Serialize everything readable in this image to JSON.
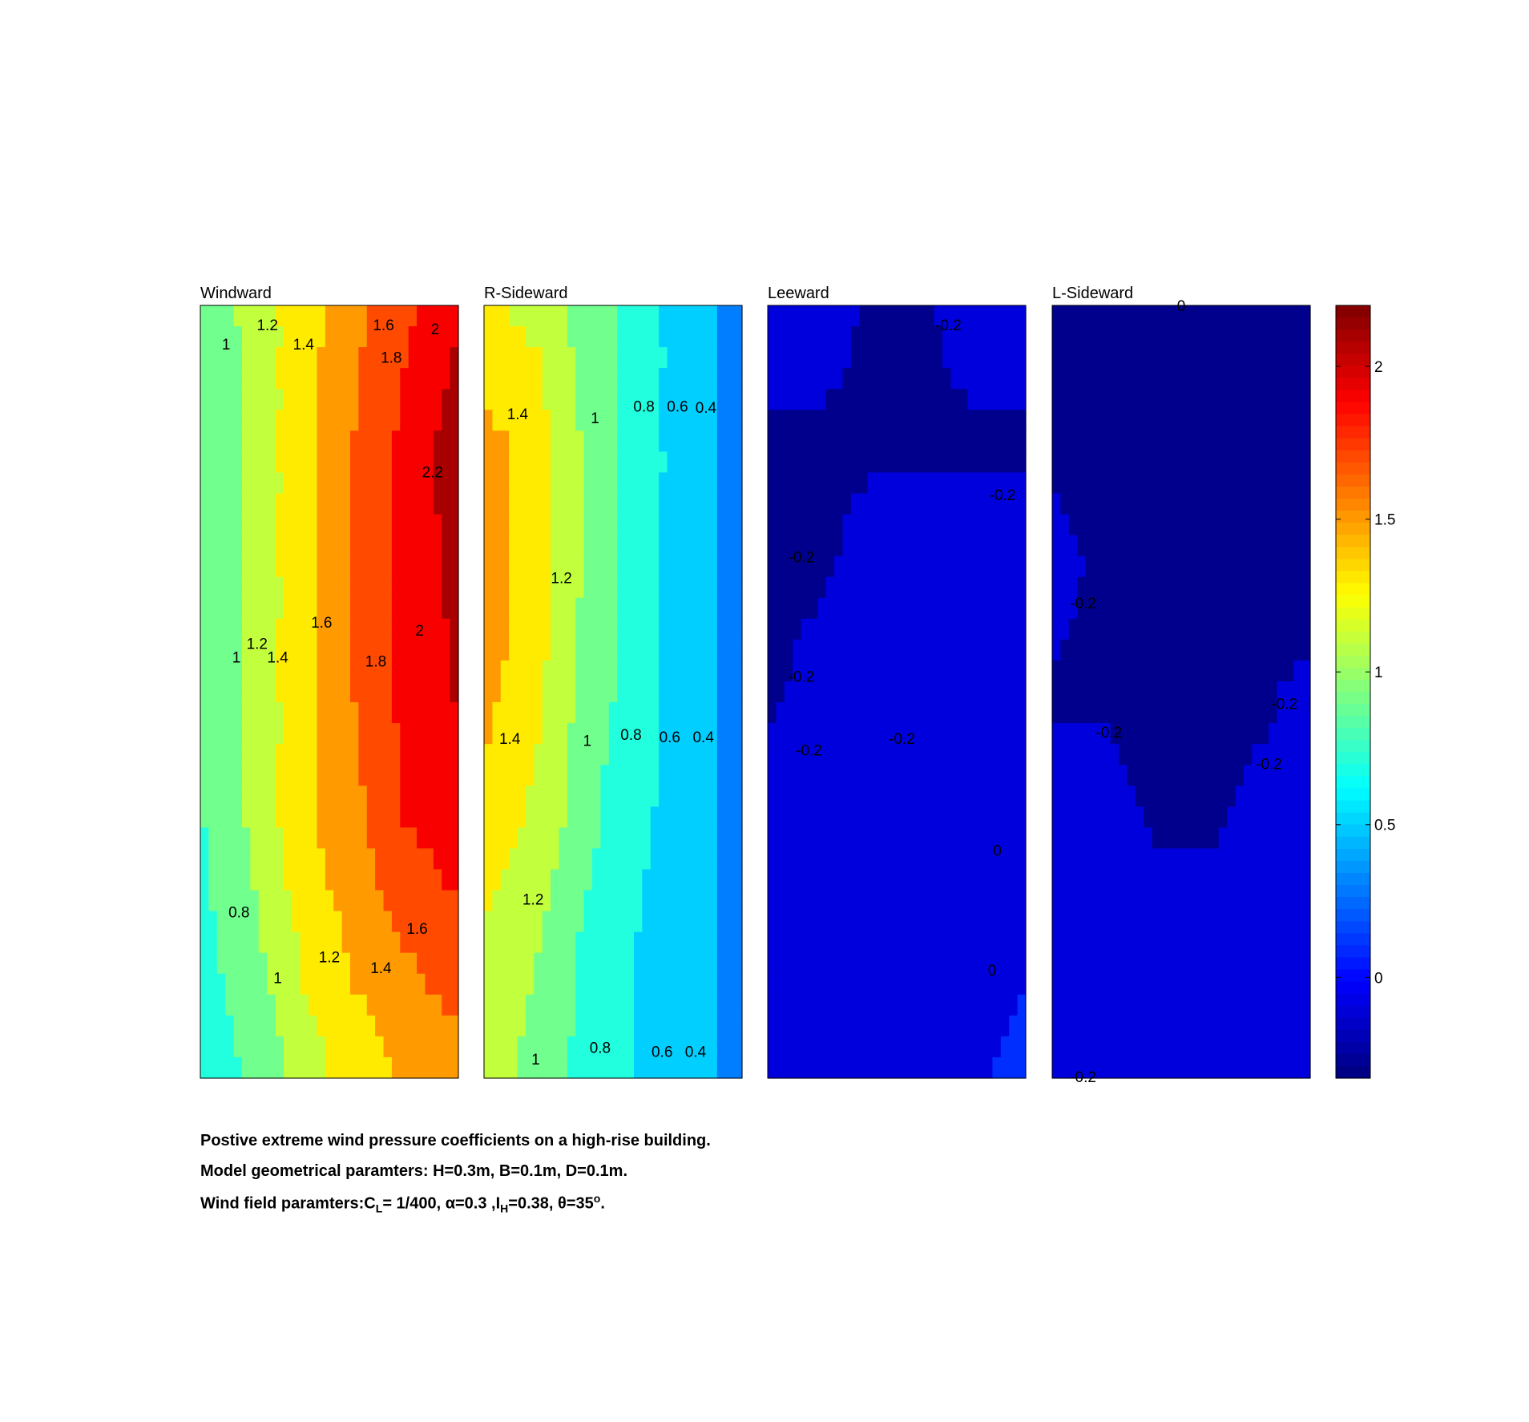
{
  "chart_data": {
    "type": "heatmap",
    "panels": [
      {
        "title": "Windward",
        "labels": [
          "1",
          "1.2",
          "1.4",
          "1.6",
          "2",
          "1.8",
          "2.2",
          "1.6",
          "1",
          "1.2",
          "1.4",
          "2",
          "1.8",
          "0.8",
          "1.6",
          "1.2",
          "1",
          "1.4"
        ],
        "grid": [
          [
            0.8,
            1.1,
            1.3,
            1.55,
            1.75,
            1.95
          ],
          [
            0.8,
            1.05,
            1.35,
            1.6,
            1.85,
            2.1
          ],
          [
            0.8,
            1.05,
            1.35,
            1.6,
            1.85,
            2.05
          ],
          [
            0.8,
            1.05,
            1.35,
            1.6,
            1.85,
            2.0
          ],
          [
            0.8,
            1.05,
            1.35,
            1.55,
            1.8,
            1.9
          ],
          [
            0.75,
            0.95,
            1.25,
            1.45,
            1.6,
            1.75
          ],
          [
            0.65,
            0.85,
            1.1,
            1.3,
            1.45,
            1.5
          ]
        ]
      },
      {
        "title": "R-Sideward",
        "labels": [
          "1.4",
          "1",
          "0.8",
          "0.6",
          "0.4",
          "1.2",
          "1.4",
          "1",
          "0.8",
          "0.6",
          "0.4",
          "1.2",
          "1",
          "0.8",
          "0.6",
          "0.4"
        ],
        "grid": [
          [
            1.25,
            1.15,
            0.9,
            0.7,
            0.5,
            0.35
          ],
          [
            1.45,
            1.3,
            0.95,
            0.7,
            0.5,
            0.35
          ],
          [
            1.5,
            1.3,
            0.95,
            0.7,
            0.5,
            0.35
          ],
          [
            1.45,
            1.25,
            0.9,
            0.7,
            0.5,
            0.35
          ],
          [
            1.35,
            1.15,
            0.85,
            0.65,
            0.5,
            0.35
          ],
          [
            1.15,
            1.0,
            0.75,
            0.6,
            0.45,
            0.35
          ],
          [
            1.05,
            0.95,
            0.7,
            0.6,
            0.45,
            0.35
          ]
        ]
      },
      {
        "title": "Leeward",
        "labels": [
          "-0.2",
          "-0.2",
          "-0.2",
          "-0.2",
          "-0.2",
          "-0.2",
          "0",
          "0"
        ],
        "grid": [
          [
            -0.15,
            -0.15,
            -0.22,
            -0.22,
            -0.15,
            -0.12
          ],
          [
            -0.22,
            -0.22,
            -0.22,
            -0.22,
            -0.22,
            -0.22
          ],
          [
            -0.22,
            -0.22,
            -0.15,
            -0.15,
            -0.15,
            -0.15
          ],
          [
            -0.22,
            -0.15,
            -0.15,
            -0.15,
            -0.15,
            -0.15
          ],
          [
            -0.15,
            -0.15,
            -0.15,
            -0.15,
            -0.15,
            -0.15
          ],
          [
            -0.15,
            -0.15,
            -0.15,
            -0.15,
            -0.05,
            -0.02
          ],
          [
            -0.15,
            -0.15,
            -0.15,
            -0.12,
            -0.02,
            0.02
          ]
        ]
      },
      {
        "title": "L-Sideward",
        "labels": [
          "-0.2",
          "-0.2",
          "-0.2",
          "-0.2",
          "-0.2",
          "0"
        ],
        "grid": [
          [
            -0.25,
            -0.25,
            -0.25,
            -0.25,
            -0.25,
            -0.25
          ],
          [
            -0.25,
            -0.25,
            -0.25,
            -0.25,
            -0.25,
            -0.25
          ],
          [
            -0.15,
            -0.25,
            -0.25,
            -0.25,
            -0.25,
            -0.25
          ],
          [
            -0.22,
            -0.22,
            -0.25,
            -0.25,
            -0.22,
            -0.18
          ],
          [
            -0.15,
            -0.15,
            -0.22,
            -0.22,
            -0.18,
            -0.15
          ],
          [
            -0.15,
            -0.15,
            -0.15,
            -0.15,
            -0.15,
            -0.15
          ],
          [
            -0.15,
            -0.15,
            -0.15,
            -0.15,
            -0.15,
            -0.15
          ]
        ]
      }
    ],
    "colorbar": {
      "colormap": "jet",
      "clim": [
        -0.33,
        2.2
      ],
      "ticks": [
        0,
        0.5,
        1,
        1.5,
        2
      ],
      "tick_labels": [
        "0",
        "0.5",
        "1",
        "1.5",
        "2"
      ]
    }
  },
  "caption": {
    "line1": "Postive extreme  wind pressure coefficients on a high-rise building.",
    "line2": "Model geometrical paramters: H=0.3m, B=0.1m, D=0.1m.",
    "line3_a": "Wind field paramters:C",
    "line3_sub_L": "L",
    "line3_b": "= 1/400, α=0.3 ,I",
    "line3_sub_H": "H",
    "line3_c": "=0.38, θ=35",
    "line3_sup": "o",
    "line3_d": "."
  }
}
